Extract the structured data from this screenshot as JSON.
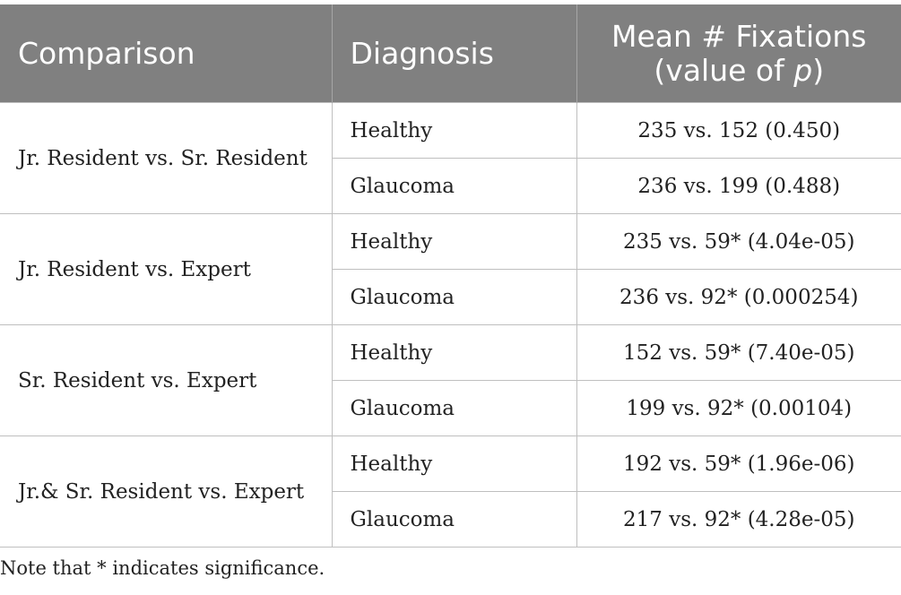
{
  "headers": {
    "comparison": "Comparison",
    "diagnosis": "Diagnosis",
    "mean_line1": "Mean # Fixations",
    "mean_line2_pre": "(value of ",
    "mean_line2_p": "p",
    "mean_line2_post": ")"
  },
  "groups": [
    {
      "comparison": "Jr. Resident vs. Sr. Resident",
      "rows": [
        {
          "diagnosis": "Healthy",
          "value": "235 vs. 152 (0.450)"
        },
        {
          "diagnosis": "Glaucoma",
          "value": "236 vs. 199 (0.488)"
        }
      ]
    },
    {
      "comparison": "Jr. Resident vs. Expert",
      "rows": [
        {
          "diagnosis": "Healthy",
          "value": "235 vs. 59* (4.04e-05)"
        },
        {
          "diagnosis": "Glaucoma",
          "value": "236 vs. 92* (0.000254)"
        }
      ]
    },
    {
      "comparison": "Sr. Resident vs. Expert",
      "rows": [
        {
          "diagnosis": "Healthy",
          "value": "152 vs. 59* (7.40e-05)"
        },
        {
          "diagnosis": "Glaucoma",
          "value": "199 vs. 92* (0.00104)"
        }
      ]
    },
    {
      "comparison": "Jr.& Sr. Resident vs. Expert",
      "rows": [
        {
          "diagnosis": "Healthy",
          "value": "192 vs. 59* (1.96e-06)"
        },
        {
          "diagnosis": "Glaucoma",
          "value": "217 vs. 92* (4.28e-05)"
        }
      ]
    }
  ],
  "note": "Note that * indicates significance."
}
